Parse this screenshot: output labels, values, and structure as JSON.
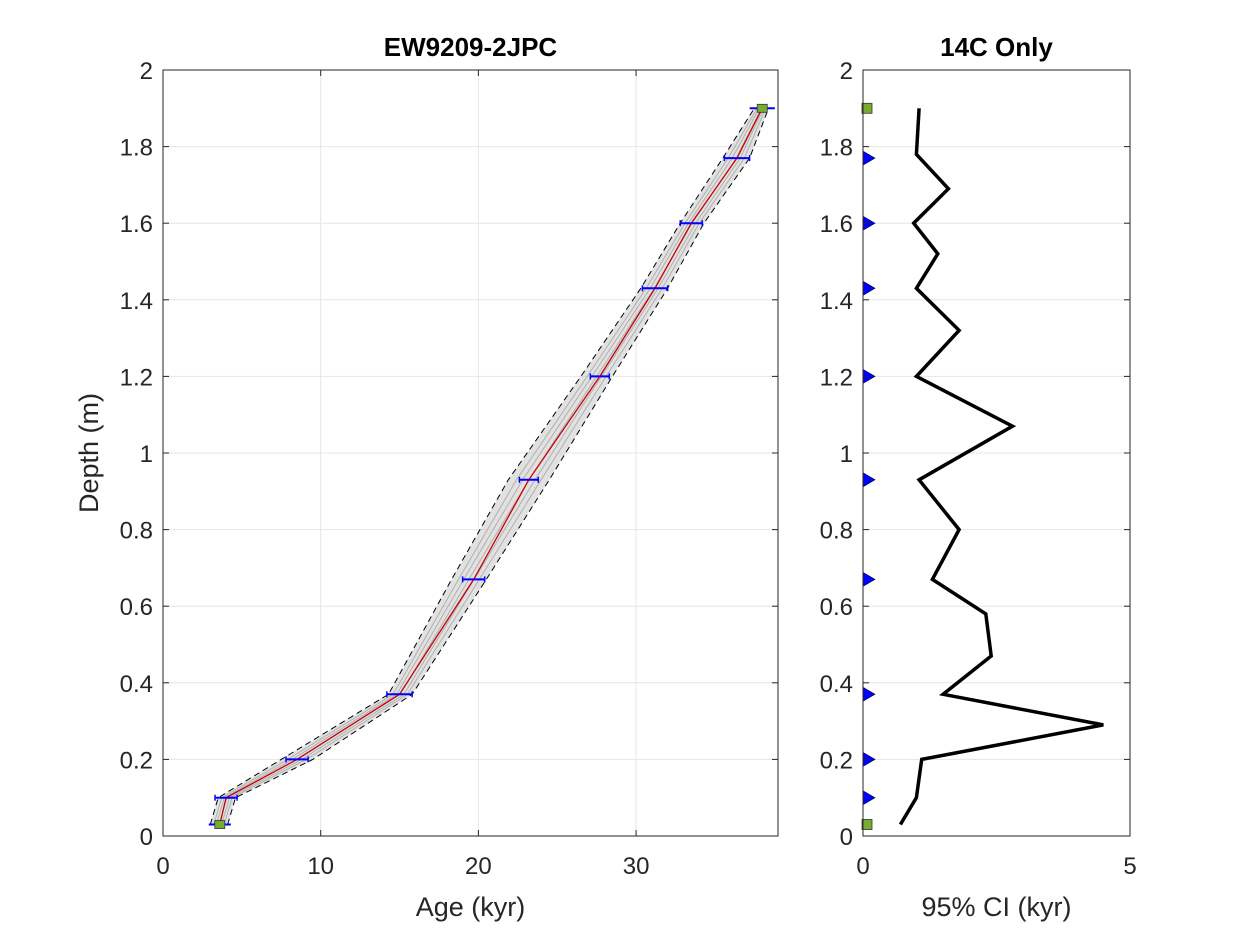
{
  "chart_data": [
    {
      "type": "line",
      "title": "EW9209-2JPC",
      "xlabel": "Age (kyr)",
      "ylabel": "Depth (m)",
      "xlim": [
        0,
        39
      ],
      "ylim": [
        0,
        2
      ],
      "xticks": [
        0,
        10,
        20,
        30
      ],
      "yticks": [
        0,
        0.2,
        0.4,
        0.6,
        0.8,
        1,
        1.2,
        1.4,
        1.6,
        1.8,
        2
      ],
      "ytick_labels": [
        "0",
        "0.2",
        "0.4",
        "0.6",
        "0.8",
        "1",
        "1.2",
        "1.4",
        "1.6",
        "1.8",
        "2"
      ],
      "grid": true,
      "colors": {
        "median": "#cc0000",
        "interval": "#000000",
        "ensemble": "#808080",
        "dates": "#0000ff",
        "ties": "#77ac30"
      },
      "median_age_model": {
        "x": [
          3.6,
          4.0,
          8.5,
          15.0,
          19.7,
          23.2,
          27.7,
          31.2,
          33.5,
          36.4,
          38.0
        ],
        "y": [
          0.03,
          0.1,
          0.2,
          0.37,
          0.67,
          0.93,
          1.2,
          1.43,
          1.6,
          1.77,
          1.9
        ]
      },
      "interval_lower": {
        "x": [
          3.0,
          3.5,
          7.5,
          14.3,
          18.3,
          21.9,
          26.5,
          30.3,
          32.8,
          35.5,
          37.5
        ],
        "y": [
          0.03,
          0.1,
          0.2,
          0.37,
          0.67,
          0.93,
          1.2,
          1.43,
          1.6,
          1.77,
          1.9
        ]
      },
      "interval_upper": {
        "x": [
          4.1,
          4.6,
          9.5,
          15.8,
          20.5,
          24.5,
          28.5,
          32.0,
          34.3,
          37.2,
          38.4
        ],
        "y": [
          0.03,
          0.1,
          0.2,
          0.37,
          0.67,
          0.93,
          1.2,
          1.43,
          1.6,
          1.77,
          1.9
        ]
      },
      "radiocarbon_dates": {
        "age": [
          4.0,
          8.5,
          15.0,
          19.7,
          23.2,
          27.7,
          31.2,
          33.5,
          36.4
        ],
        "depth": [
          0.1,
          0.2,
          0.37,
          0.67,
          0.93,
          1.2,
          1.43,
          1.6,
          1.77
        ],
        "error": [
          0.7,
          0.7,
          0.8,
          0.7,
          0.6,
          0.6,
          0.8,
          0.7,
          0.8
        ]
      },
      "tie_points": {
        "age": [
          3.6,
          38.0
        ],
        "depth": [
          0.03,
          1.9
        ],
        "error": [
          0.7,
          0.8
        ]
      }
    },
    {
      "type": "line",
      "title": "14C Only",
      "xlabel": "95% CI (kyr)",
      "ylabel": "",
      "xlim": [
        0,
        5
      ],
      "ylim": [
        0,
        2
      ],
      "xticks": [
        0,
        5
      ],
      "yticks": [
        0,
        0.2,
        0.4,
        0.6,
        0.8,
        1,
        1.2,
        1.4,
        1.6,
        1.8,
        2
      ],
      "ytick_labels": [
        "0",
        "0.2",
        "0.4",
        "0.6",
        "0.8",
        "1",
        "1.2",
        "1.4",
        "1.6",
        "1.8",
        "2"
      ],
      "grid": true,
      "ci_width": {
        "x": [
          0.7,
          1.0,
          1.1,
          4.5,
          1.5,
          2.4,
          2.3,
          1.3,
          1.8,
          1.05,
          2.8,
          1.0,
          1.8,
          1.0,
          1.4,
          0.95,
          1.6,
          1.0,
          1.05
        ],
        "y": [
          0.03,
          0.1,
          0.2,
          0.29,
          0.37,
          0.47,
          0.58,
          0.67,
          0.8,
          0.93,
          1.07,
          1.2,
          1.32,
          1.43,
          1.52,
          1.6,
          1.69,
          1.78,
          1.9
        ]
      },
      "date_markers": {
        "depth": [
          0.1,
          0.2,
          0.37,
          0.67,
          0.93,
          1.2,
          1.43,
          1.6,
          1.77
        ]
      },
      "tie_markers": {
        "depth": [
          0.03,
          1.9
        ]
      }
    }
  ]
}
